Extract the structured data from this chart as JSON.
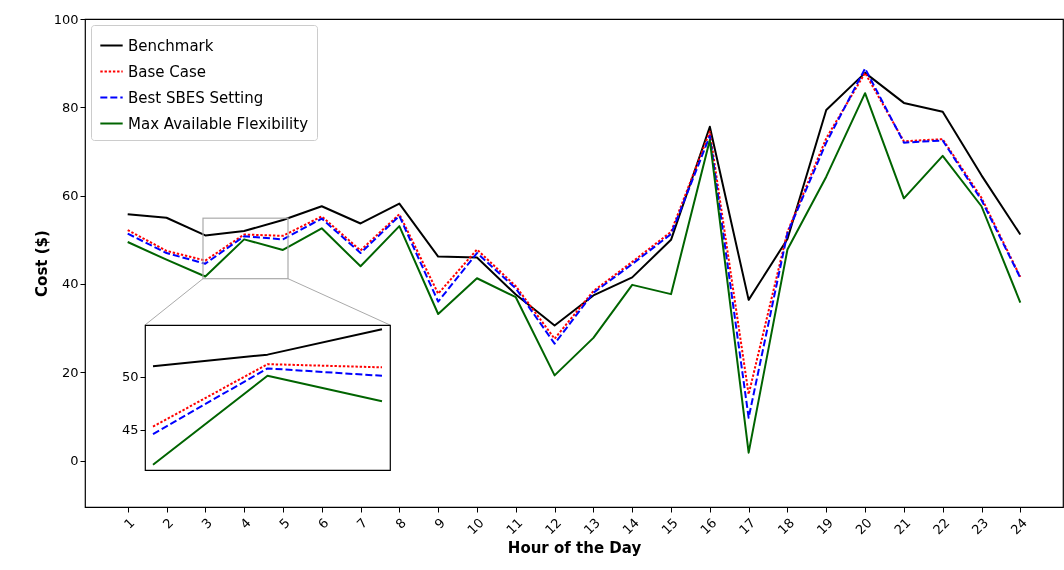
{
  "chart_data": [
    {
      "type": "line",
      "xlabel": "Hour of the Day",
      "ylabel": "Cost ($)",
      "x": [
        1,
        2,
        3,
        4,
        5,
        6,
        7,
        8,
        9,
        10,
        11,
        12,
        13,
        14,
        15,
        16,
        17,
        18,
        19,
        20,
        21,
        22,
        23,
        24
      ],
      "xlim": [
        -0.1,
        25.1
      ],
      "xticks": [
        1,
        2,
        3,
        4,
        5,
        6,
        7,
        8,
        9,
        10,
        11,
        12,
        13,
        14,
        15,
        16,
        17,
        18,
        19,
        20,
        21,
        22,
        23,
        24
      ],
      "ylim": [
        -10.5,
        100
      ],
      "yticks": [
        0,
        20,
        40,
        60,
        80,
        100
      ],
      "grid": false,
      "legend": "top left",
      "marker": "none",
      "series": [
        {
          "name": "Benchmark",
          "color": "#000000",
          "line_style": "solid",
          "values": [
            55.8,
            55,
            51,
            52,
            54.5,
            57.6,
            53.7,
            58.2,
            46.2,
            46,
            37.6,
            30.6,
            37.4,
            41.5,
            50,
            75.6,
            36.4,
            50.2,
            79.4,
            87.8,
            81,
            79,
            64.6,
            51.2
          ]
        },
        {
          "name": "Base Case",
          "color": "#ff0000",
          "line_style": "dotted",
          "values": [
            52.2,
            47.5,
            45.3,
            51.2,
            50.9,
            55.3,
            47.6,
            55.8,
            37.8,
            47.8,
            39.5,
            27.6,
            38.4,
            45,
            51.8,
            74.5,
            15,
            51.8,
            73,
            87.8,
            72.3,
            72.8,
            59.5,
            41.6
          ]
        },
        {
          "name": "Best SBES Setting",
          "color": "#0000ff",
          "line_style": "dashed",
          "values": [
            51.4,
            47,
            44.6,
            50.8,
            50.1,
            54.8,
            47,
            55.4,
            36,
            47,
            39,
            26.5,
            38,
            44.5,
            51.3,
            73.5,
            9.7,
            51.5,
            72,
            88.8,
            72,
            72.5,
            59,
            41.4
          ]
        },
        {
          "name": "Max Available Flexibility",
          "color": "#006400",
          "line_style": "solid",
          "values": [
            49.5,
            45.5,
            41.7,
            50.1,
            47.7,
            52.6,
            44,
            53.1,
            33.2,
            41.3,
            37,
            19.3,
            27.8,
            39.8,
            37.7,
            72.6,
            1.8,
            47.8,
            64.3,
            83.2,
            59.4,
            69,
            57.6,
            35.8
          ]
        }
      ]
    },
    {
      "type": "line",
      "categories": [
        null,
        null,
        null
      ],
      "ylim": [
        41.2,
        54.9
      ],
      "yticks": [
        45,
        50
      ],
      "grid": false,
      "tick_labels": "y",
      "marker": "none",
      "series": [
        {
          "color": "#000000",
          "line_style": "solid",
          "values": [
            51,
            52.1,
            54.5
          ]
        },
        {
          "color": "#ff0000",
          "line_style": "dotted",
          "values": [
            45.3,
            51.2,
            50.9
          ]
        },
        {
          "color": "#0000ff",
          "line_style": "dashed",
          "values": [
            44.6,
            50.8,
            50.1
          ]
        },
        {
          "color": "#006400",
          "line_style": "solid",
          "values": [
            41.7,
            50.1,
            47.7
          ]
        }
      ]
    }
  ]
}
